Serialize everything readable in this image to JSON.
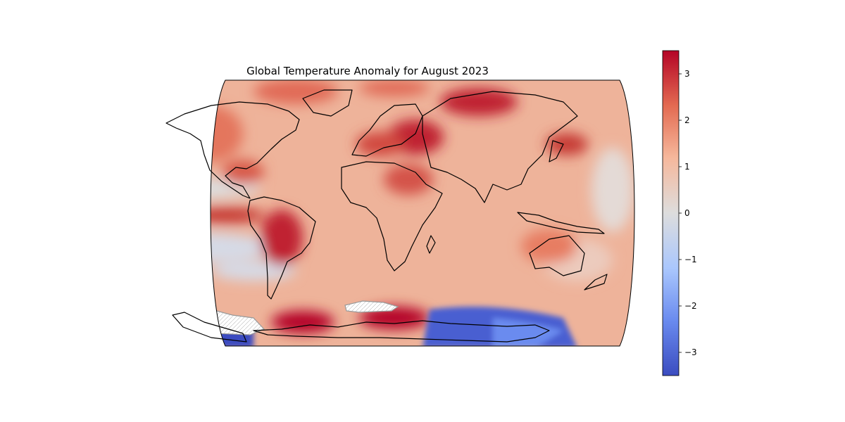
{
  "figure": {
    "title": "Global Temperature Anomaly for August 2023"
  },
  "map": {
    "projection": "Robinson",
    "extent": "global",
    "coastlines": true,
    "colormap": "coolwarm",
    "missing_data": "white hatched patches near Antarctica"
  },
  "colorbar": {
    "orientation": "vertical",
    "placement": "right",
    "min": -3.5,
    "max": 3.5,
    "ticks": [
      {
        "value": 3,
        "label": "3"
      },
      {
        "value": 2,
        "label": "2"
      },
      {
        "value": 1,
        "label": "1"
      },
      {
        "value": 0,
        "label": "0"
      },
      {
        "value": -1,
        "label": "−1"
      },
      {
        "value": -2,
        "label": "−2"
      },
      {
        "value": -3,
        "label": "−3"
      }
    ],
    "colors": {
      "low": "#3b4cc0",
      "mid": "#dddddd",
      "high": "#b40426"
    }
  }
}
